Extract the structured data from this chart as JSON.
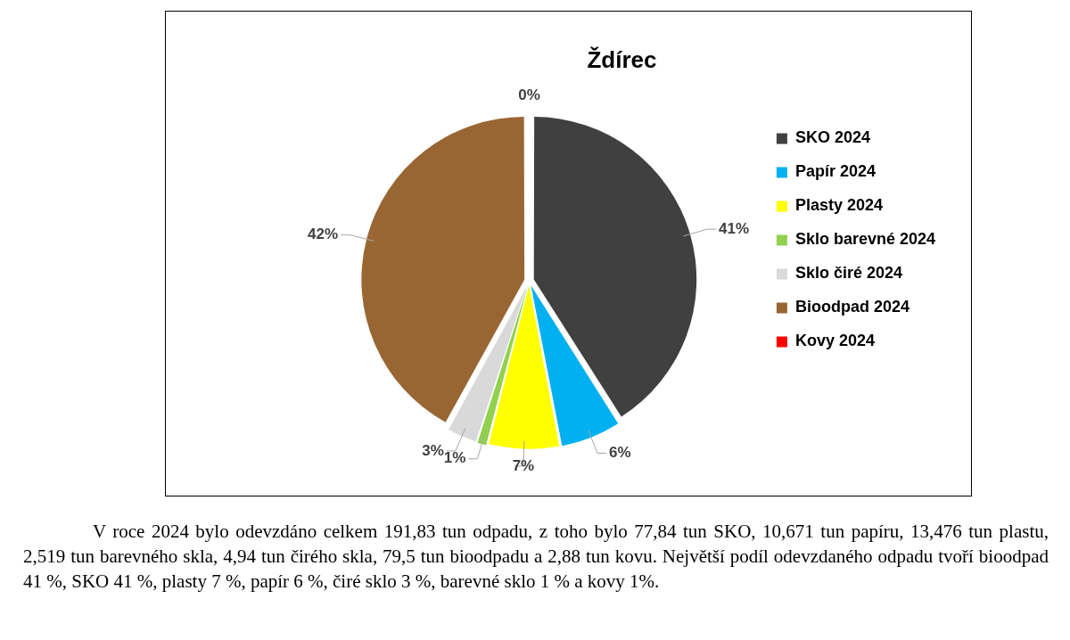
{
  "chart_data": {
    "type": "pie",
    "title": "Ždírec",
    "categories": [
      "SKO 2024",
      "Papír 2024",
      "Plasty 2024",
      "Sklo barevné 2024",
      "Sklo čiré 2024",
      "Bioodpad 2024",
      "Kovy 2024"
    ],
    "values": [
      41,
      6,
      7,
      1,
      3,
      42,
      0
    ],
    "value_labels": [
      "41%",
      "6%",
      "7%",
      "1%",
      "3%",
      "42%",
      "0%"
    ],
    "colors": [
      "#404040",
      "#00b0f0",
      "#ffff00",
      "#92d050",
      "#d9d9d9",
      "#996633",
      "#ff0000"
    ],
    "legend": "right",
    "annotations": [
      "V roce 2024 bylo odevzdáno celkem 191,83 tun odpadu, z toho bylo 77,84 tun SKO, 10,671 tun papíru, 13,476 tun plastu, 2,519 tun barevného skla, 4,94 tun čirého skla, 79,5 tun bioodpadu a 2,88 tun kovu. Největší podíl odevzdaného odpadu tvoří bioodpad 41 %, SKO 41 %, plasty 7 %, papír 6 %, čiré sklo 3 %, barevné sklo 1 % a kovy 1%."
    ]
  }
}
